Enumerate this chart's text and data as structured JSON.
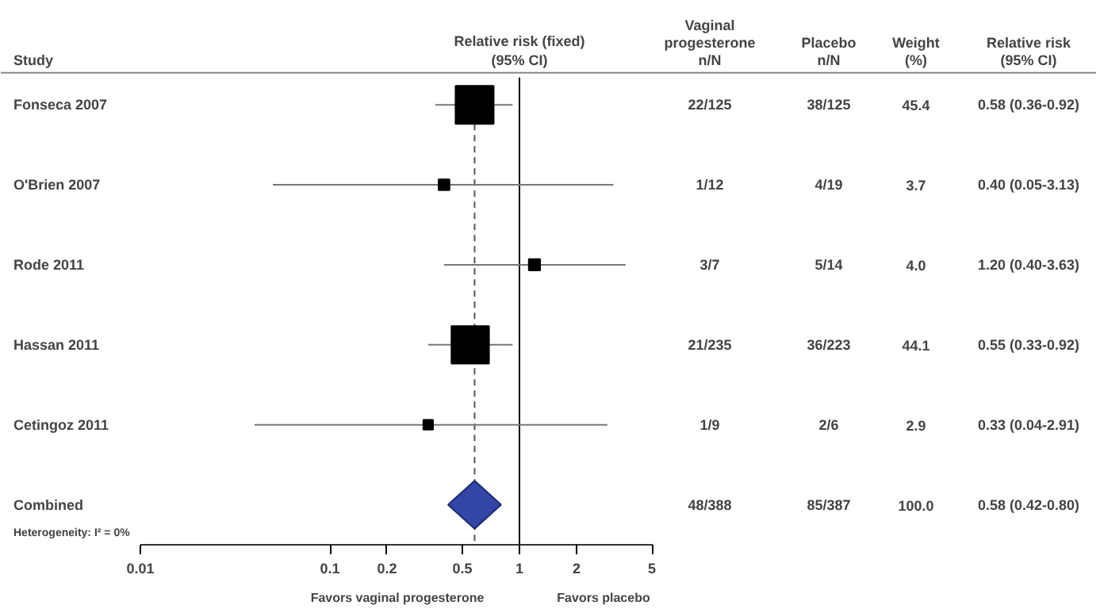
{
  "chart_data": {
    "type": "scatter",
    "orientation": "horizontal",
    "title": "Relative risk (fixed)\n(95% CI)",
    "ylabel": "Study",
    "categories": [
      "Fonseca 2007",
      "O'Brien 2007",
      "Rode 2011",
      "Hassan 2011",
      "Cetingoz 2011",
      "Combined"
    ],
    "series": [
      {
        "type": "bubble",
        "marker": "square",
        "color": "#000000",
        "values": [
          0.58,
          0.4,
          1.2,
          0.55,
          0.33,
          null
        ],
        "errors": [
          [
            0.36,
            0.92
          ],
          [
            0.05,
            3.13
          ],
          [
            0.4,
            3.63
          ],
          [
            0.33,
            0.92
          ],
          [
            0.04,
            2.91
          ],
          null
        ],
        "sizes": [
          1,
          0.081,
          0.088,
          0.971,
          0.064,
          null
        ],
        "value_labels": [
          "0.58 (0.36-0.92)",
          "0.40 (0.05-3.13)",
          "1.20 (0.40-3.63)",
          "0.55 (0.33-0.92)",
          "0.33 (0.04-2.91)",
          null
        ]
      },
      {
        "type": "scatter",
        "marker": "diamond",
        "color": "#3346a8",
        "values": [
          null,
          null,
          null,
          null,
          null,
          0.58
        ],
        "errors": [
          null,
          null,
          null,
          null,
          null,
          [
            0.42,
            0.8
          ]
        ]
      }
    ],
    "xlim": [
      0.01,
      5
    ],
    "xticks": [
      0.01,
      0.1,
      0.2,
      0.5,
      1,
      2,
      5
    ],
    "log": "x",
    "grid": false,
    "ref_lines": [
      {
        "axis": "x",
        "value": 1,
        "line_style": "solid",
        "color": "#000000"
      },
      {
        "axis": "x",
        "value": 0.58,
        "line_style": "dashed",
        "color": "#555555"
      }
    ],
    "annotations": [
      "Vaginal\nprogesterone\nn/N",
      "Placebo\nn/N",
      "Weight\n(%)",
      "Relative risk\n(95% CI)",
      "22/125",
      "38/125",
      "45.4",
      "1/12",
      "4/19",
      "3.7",
      "3/7",
      "5/14",
      "4.0",
      "21/235",
      "36/223",
      "44.1",
      "1/9",
      "2/6",
      "2.9",
      "48/388",
      "85/387",
      "100.0",
      "Heterogeneity: I² = 0%",
      "Favors vaginal progesterone",
      "Favors placebo",
      "0.58 (0.42-0.80)"
    ]
  }
}
